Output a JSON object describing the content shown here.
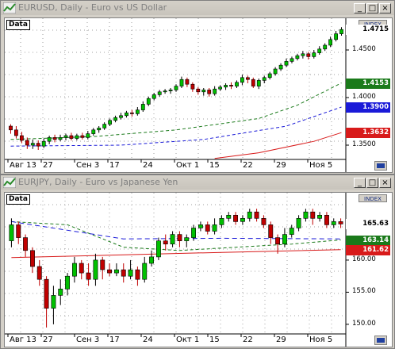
{
  "windows": [
    {
      "title": "EURUSD, Daily - Euro vs US Dollar",
      "data_label": "Data",
      "index_label": "INDEX",
      "y_ticks": [
        "1.4500",
        "1.4000",
        "1.3500"
      ],
      "x_ticks": [
        "Авг 13",
        "27",
        "Сен 3",
        "17",
        "24",
        "Окт 1",
        "15",
        "22",
        "29",
        "Ноя 5"
      ],
      "price_labels": [
        {
          "text": "1.4715",
          "color": "#000000",
          "bg": "#ffffff"
        },
        {
          "text": "1.4153",
          "color": "#ffffff",
          "bg": "#1a7a1a"
        },
        {
          "text": "1.3900",
          "color": "#ffffff",
          "bg": "#1a1ad8"
        },
        {
          "text": "1.3632",
          "color": "#ffffff",
          "bg": "#d81a1a"
        }
      ],
      "chart_data": {
        "type": "candlestick",
        "ylim": [
          1.335,
          1.48
        ],
        "candles": [
          [
            1.37,
            1.366,
            1.372,
            1.362
          ],
          [
            1.366,
            1.36,
            1.37,
            1.357
          ],
          [
            1.36,
            1.355,
            1.364,
            1.352
          ],
          [
            1.355,
            1.35,
            1.358,
            1.346
          ],
          [
            1.35,
            1.352,
            1.356,
            1.346
          ],
          [
            1.352,
            1.349,
            1.355,
            1.345
          ],
          [
            1.349,
            1.354,
            1.357,
            1.347
          ],
          [
            1.354,
            1.358,
            1.36,
            1.351
          ],
          [
            1.358,
            1.356,
            1.361,
            1.353
          ],
          [
            1.356,
            1.358,
            1.361,
            1.354
          ],
          [
            1.358,
            1.36,
            1.362,
            1.355
          ],
          [
            1.36,
            1.357,
            1.363,
            1.355
          ],
          [
            1.357,
            1.36,
            1.362,
            1.355
          ],
          [
            1.36,
            1.358,
            1.363,
            1.356
          ],
          [
            1.358,
            1.362,
            1.365,
            1.356
          ],
          [
            1.362,
            1.366,
            1.368,
            1.36
          ],
          [
            1.366,
            1.368,
            1.37,
            1.363
          ],
          [
            1.368,
            1.372,
            1.374,
            1.366
          ],
          [
            1.372,
            1.376,
            1.378,
            1.37
          ],
          [
            1.376,
            1.379,
            1.381,
            1.374
          ],
          [
            1.379,
            1.381,
            1.384,
            1.377
          ],
          [
            1.381,
            1.384,
            1.386,
            1.379
          ],
          [
            1.384,
            1.383,
            1.387,
            1.38
          ],
          [
            1.383,
            1.387,
            1.39,
            1.381
          ],
          [
            1.387,
            1.393,
            1.396,
            1.385
          ],
          [
            1.393,
            1.399,
            1.401,
            1.391
          ],
          [
            1.399,
            1.403,
            1.405,
            1.397
          ],
          [
            1.403,
            1.406,
            1.408,
            1.401
          ],
          [
            1.406,
            1.407,
            1.409,
            1.404
          ],
          [
            1.407,
            1.408,
            1.41,
            1.404
          ],
          [
            1.408,
            1.412,
            1.414,
            1.406
          ],
          [
            1.412,
            1.419,
            1.422,
            1.41
          ],
          [
            1.419,
            1.414,
            1.421,
            1.411
          ],
          [
            1.414,
            1.409,
            1.416,
            1.406
          ],
          [
            1.409,
            1.406,
            1.411,
            1.403
          ],
          [
            1.406,
            1.408,
            1.41,
            1.402
          ],
          [
            1.408,
            1.404,
            1.41,
            1.401
          ],
          [
            1.404,
            1.409,
            1.412,
            1.402
          ],
          [
            1.409,
            1.411,
            1.413,
            1.407
          ],
          [
            1.411,
            1.413,
            1.415,
            1.408
          ],
          [
            1.413,
            1.412,
            1.416,
            1.409
          ],
          [
            1.412,
            1.416,
            1.418,
            1.41
          ],
          [
            1.416,
            1.421,
            1.424,
            1.413
          ],
          [
            1.421,
            1.419,
            1.423,
            1.415
          ],
          [
            1.419,
            1.412,
            1.421,
            1.41
          ],
          [
            1.412,
            1.418,
            1.42,
            1.409
          ],
          [
            1.418,
            1.421,
            1.423,
            1.415
          ],
          [
            1.421,
            1.425,
            1.427,
            1.419
          ],
          [
            1.425,
            1.43,
            1.432,
            1.423
          ],
          [
            1.43,
            1.434,
            1.436,
            1.428
          ],
          [
            1.434,
            1.438,
            1.441,
            1.432
          ],
          [
            1.438,
            1.441,
            1.443,
            1.436
          ],
          [
            1.441,
            1.444,
            1.446,
            1.439
          ],
          [
            1.444,
            1.446,
            1.449,
            1.441
          ],
          [
            1.446,
            1.443,
            1.448,
            1.44
          ],
          [
            1.443,
            1.447,
            1.45,
            1.441
          ],
          [
            1.447,
            1.451,
            1.454,
            1.445
          ],
          [
            1.451,
            1.455,
            1.457,
            1.449
          ],
          [
            1.455,
            1.461,
            1.464,
            1.453
          ],
          [
            1.461,
            1.467,
            1.47,
            1.459
          ],
          [
            1.467,
            1.4715,
            1.474,
            1.465
          ]
        ],
        "ma": [
          {
            "color": "#1a7a1a",
            "dash": "4,3",
            "pts": [
              [
                0,
                1.356
              ],
              [
                15,
                1.359
              ],
              [
                30,
                1.366
              ],
              [
                45,
                1.378
              ],
              [
                52,
                1.392
              ],
              [
                60,
                1.4153
              ]
            ]
          },
          {
            "color": "#1a1ad8",
            "dash": "4,3",
            "pts": [
              [
                0,
                1.349
              ],
              [
                20,
                1.35
              ],
              [
                35,
                1.356
              ],
              [
                50,
                1.37
              ],
              [
                60,
                1.39
              ]
            ]
          },
          {
            "color": "#d81a1a",
            "dash": "",
            "pts": [
              [
                37,
                1.336
              ],
              [
                45,
                1.342
              ],
              [
                55,
                1.354
              ],
              [
                60,
                1.3632
              ]
            ]
          }
        ]
      }
    },
    {
      "title": "EURJPY, Daily - Euro vs Japanese Yen",
      "data_label": "Data",
      "index_label": "INDEX",
      "y_ticks": [
        "165.00",
        "160.00",
        "155.00",
        "150.00"
      ],
      "x_ticks": [
        "Авг 13",
        "27",
        "Сен 3",
        "17",
        "24",
        "Окт 1",
        "15",
        "22",
        "29",
        "Ноя 5"
      ],
      "price_labels": [
        {
          "text": "165.63",
          "color": "#000000",
          "bg": "#ffffff"
        },
        {
          "text": "163.14",
          "color": "#ffffff",
          "bg": "#1a7a1a"
        },
        {
          "text": "161.62",
          "color": "#ffffff",
          "bg": "#d81a1a"
        }
      ],
      "chart_data": {
        "type": "candlestick",
        "ylim": [
          148.5,
          170.0
        ],
        "candles": [
          [
            163.0,
            165.5,
            166.5,
            162.0
          ],
          [
            165.5,
            163.5,
            166.0,
            162.5
          ],
          [
            163.5,
            161.5,
            164.0,
            160.5
          ],
          [
            161.5,
            159.0,
            162.0,
            158.0
          ],
          [
            159.0,
            157.0,
            160.0,
            156.0
          ],
          [
            157.0,
            152.5,
            157.5,
            149.5
          ],
          [
            152.5,
            154.5,
            156.0,
            150.0
          ],
          [
            154.5,
            155.5,
            157.0,
            153.0
          ],
          [
            155.5,
            157.5,
            158.0,
            154.5
          ],
          [
            157.5,
            159.5,
            160.5,
            156.5
          ],
          [
            159.5,
            158.0,
            160.0,
            157.0
          ],
          [
            158.0,
            157.0,
            159.5,
            156.0
          ],
          [
            157.0,
            160.0,
            161.0,
            156.0
          ],
          [
            160.0,
            158.5,
            160.5,
            157.0
          ],
          [
            158.5,
            158.0,
            159.5,
            157.5
          ],
          [
            158.0,
            158.5,
            159.5,
            157.5
          ],
          [
            158.5,
            157.5,
            159.5,
            156.5
          ],
          [
            157.5,
            158.5,
            160.0,
            157.0
          ],
          [
            158.5,
            157.0,
            159.0,
            156.0
          ],
          [
            157.0,
            159.5,
            160.5,
            156.5
          ],
          [
            159.5,
            160.5,
            161.5,
            159.0
          ],
          [
            160.5,
            163.0,
            163.5,
            160.0
          ],
          [
            163.0,
            162.5,
            164.0,
            161.5
          ],
          [
            162.5,
            164.0,
            164.5,
            162.0
          ],
          [
            164.0,
            163.0,
            164.5,
            162.0
          ],
          [
            163.0,
            163.5,
            164.0,
            162.0
          ],
          [
            163.5,
            165.0,
            165.5,
            163.0
          ],
          [
            165.0,
            165.5,
            166.0,
            164.5
          ],
          [
            165.5,
            164.5,
            166.0,
            164.0
          ],
          [
            164.5,
            165.5,
            166.5,
            164.0
          ],
          [
            165.5,
            166.5,
            167.0,
            165.0
          ],
          [
            166.5,
            167.0,
            167.5,
            166.0
          ],
          [
            167.0,
            166.0,
            167.5,
            165.5
          ],
          [
            166.0,
            166.5,
            167.0,
            165.5
          ],
          [
            166.5,
            167.5,
            168.0,
            166.0
          ],
          [
            167.5,
            166.5,
            168.0,
            166.0
          ],
          [
            166.5,
            165.5,
            167.0,
            165.0
          ],
          [
            165.5,
            163.5,
            166.0,
            162.5
          ],
          [
            163.5,
            162.5,
            164.0,
            161.0
          ],
          [
            162.5,
            164.0,
            165.0,
            162.0
          ],
          [
            164.0,
            165.0,
            165.5,
            163.5
          ],
          [
            165.0,
            166.5,
            167.0,
            164.5
          ],
          [
            166.5,
            167.5,
            168.0,
            166.0
          ],
          [
            167.5,
            166.5,
            168.0,
            165.5
          ],
          [
            166.5,
            167.0,
            167.5,
            166.0
          ],
          [
            167.0,
            165.5,
            167.5,
            165.0
          ],
          [
            165.5,
            166.0,
            166.5,
            165.0
          ],
          [
            166.0,
            165.63,
            166.5,
            165.0
          ]
        ],
        "ma": [
          {
            "color": "#1a7a1a",
            "dash": "4,3",
            "pts": [
              [
                0,
                166.0
              ],
              [
                8,
                165.5
              ],
              [
                16,
                162.0
              ],
              [
                24,
                161.5
              ],
              [
                32,
                162.0
              ],
              [
                40,
                162.5
              ],
              [
                47,
                163.14
              ]
            ]
          },
          {
            "color": "#1a1ad8",
            "dash": "6,4",
            "pts": [
              [
                0,
                166.0
              ],
              [
                16,
                163.3
              ],
              [
                30,
                163.4
              ],
              [
                47,
                163.3
              ]
            ]
          },
          {
            "color": "#d81a1a",
            "dash": "",
            "pts": [
              [
                0,
                160.4
              ],
              [
                15,
                160.8
              ],
              [
                30,
                161.2
              ],
              [
                47,
                161.62
              ]
            ]
          }
        ]
      }
    }
  ],
  "buttons": {
    "minimize": "_",
    "maximize": "□",
    "close": "×"
  }
}
